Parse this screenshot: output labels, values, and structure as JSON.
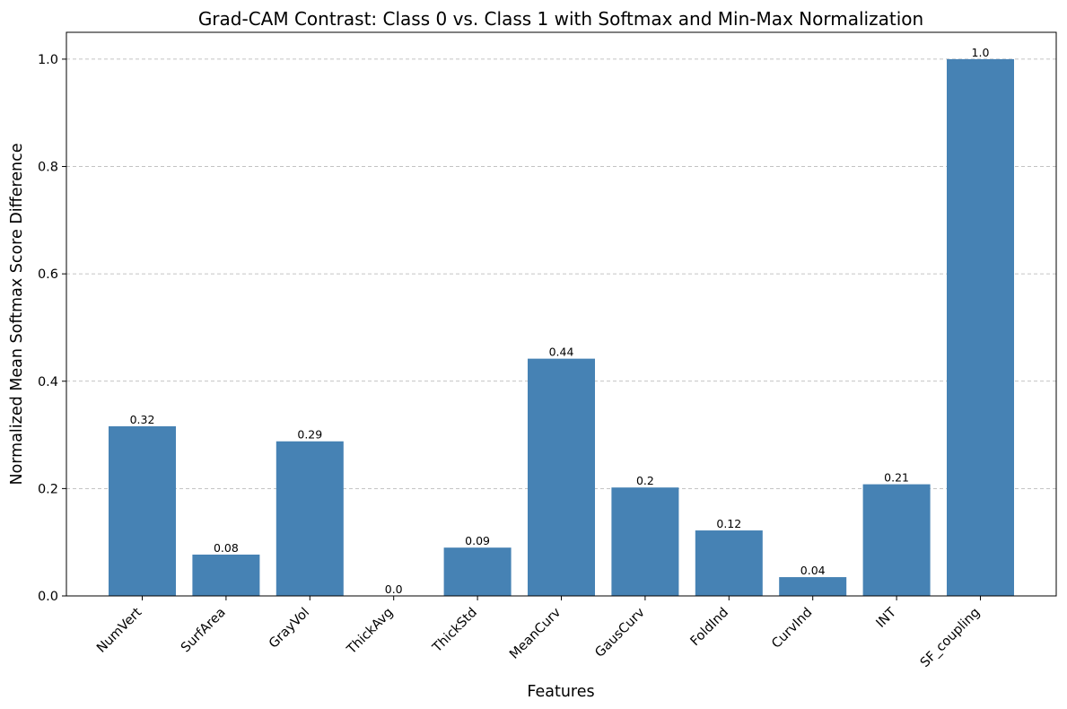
{
  "chart_data": {
    "type": "bar",
    "title": "Grad-CAM Contrast: Class 0 vs. Class 1 with Softmax and Min-Max Normalization",
    "xlabel": "Features",
    "ylabel": "Normalized Mean Softmax Score Difference",
    "categories": [
      "NumVert",
      "SurfArea",
      "GrayVol",
      "ThickAvg",
      "ThickStd",
      "MeanCurv",
      "GausCurv",
      "FoldInd",
      "CurvInd",
      "INT",
      "SF_coupling"
    ],
    "values": [
      0.316,
      0.077,
      0.288,
      0.0,
      0.09,
      0.442,
      0.202,
      0.122,
      0.035,
      0.208,
      1.0
    ],
    "data_labels": [
      "0.32",
      "0.08",
      "0.29",
      "0.0",
      "0.09",
      "0.44",
      "0.2",
      "0.12",
      "0.04",
      "0.21",
      "1.0"
    ],
    "yticks": [
      0.0,
      0.2,
      0.4,
      0.6,
      0.8,
      1.0
    ],
    "ytick_labels": [
      "0.0",
      "0.2",
      "0.4",
      "0.6",
      "0.8",
      "1.0"
    ],
    "ylim": [
      0,
      1.05
    ],
    "grid": "y-dashed",
    "bar_color": "#4682b4"
  }
}
